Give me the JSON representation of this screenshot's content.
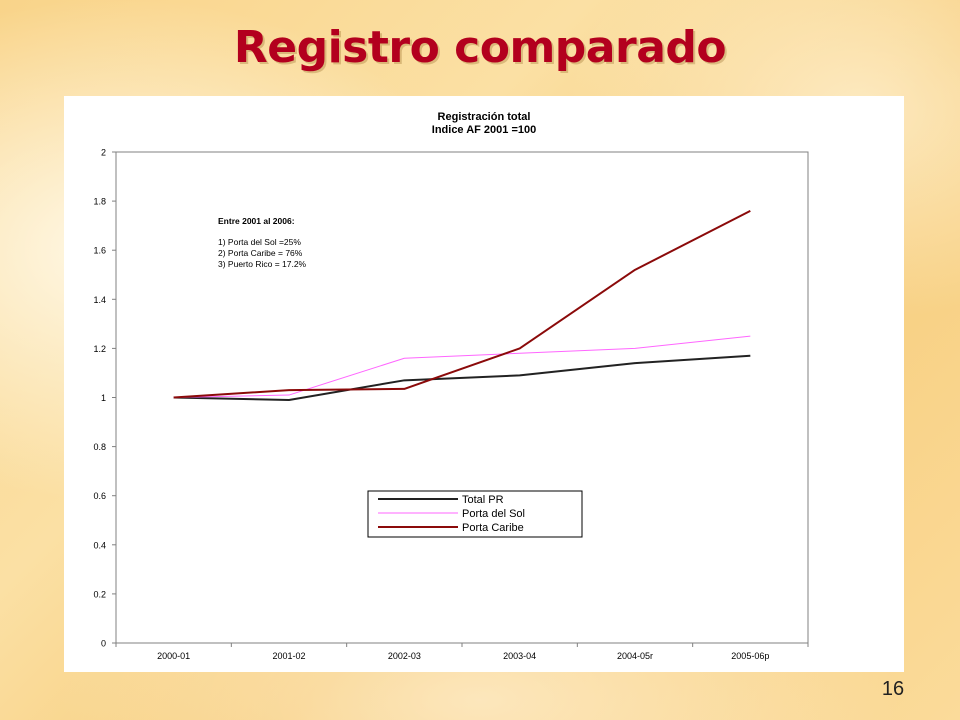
{
  "slide": {
    "title": "Registro comparado",
    "number": "16"
  },
  "colors": {
    "title": "#b3001e",
    "total_pr": "#222222",
    "porta_del_sol": "#ff66ff",
    "porta_caribe": "#8b0a0a"
  },
  "chart_data": {
    "type": "line",
    "title": "Registración total",
    "subtitle": "Indice AF 2001 =100",
    "categories": [
      "2000-01",
      "2001-02",
      "2002-03",
      "2003-04",
      "2004-05r",
      "2005-06p"
    ],
    "ylim": [
      0,
      2
    ],
    "yticks": [
      "0",
      "0.2",
      "0.4",
      "0.6",
      "0.8",
      "1",
      "1.2",
      "1.4",
      "1.6",
      "1.8",
      "2"
    ],
    "grid": false,
    "legend_position": "bottom-center",
    "series": [
      {
        "name": "Total PR",
        "values": [
          1.0,
          0.99,
          1.07,
          1.09,
          1.14,
          1.17
        ]
      },
      {
        "name": "Porta del Sol",
        "values": [
          1.0,
          1.01,
          1.16,
          1.18,
          1.2,
          1.25
        ]
      },
      {
        "name": "Porta Caribe",
        "values": [
          1.0,
          1.03,
          1.035,
          1.2,
          1.52,
          1.76
        ]
      }
    ],
    "annotation": {
      "heading": "Entre 2001 al 2006:",
      "lines": [
        "1) Porta del Sol =25%",
        "2) Porta Caribe = 76%",
        "3) Puerto Rico = 17.2%"
      ]
    }
  }
}
